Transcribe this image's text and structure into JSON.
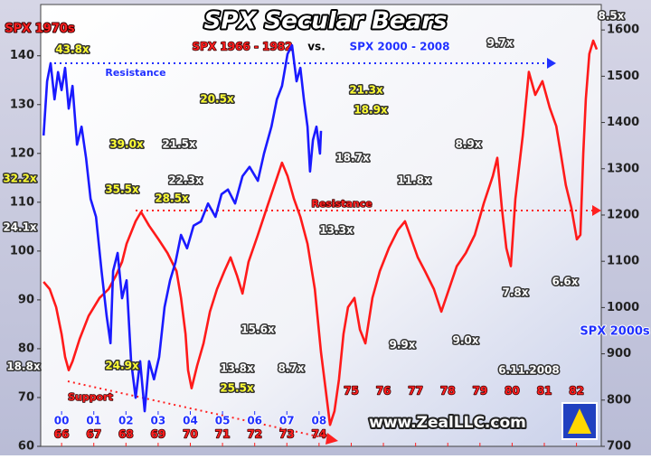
{
  "chart_data": {
    "type": "line",
    "title": "SPX Secular Bears",
    "y_label": "SPX 1970s",
    "y2_label": "SPX 2000s",
    "xlim": [
      -0.65,
      16.77
    ],
    "xticks": [
      {
        "value": 0,
        "label": "66"
      },
      {
        "value": 1,
        "label": "67"
      },
      {
        "value": 2,
        "label": "68"
      },
      {
        "value": 3,
        "label": "69"
      },
      {
        "value": 4,
        "label": "70"
      },
      {
        "value": 5,
        "label": "71"
      },
      {
        "value": 6,
        "label": "72"
      },
      {
        "value": 7,
        "label": "73"
      },
      {
        "value": 8,
        "label": "74"
      },
      {
        "value": 9,
        "label": "75"
      },
      {
        "value": 10,
        "label": "76"
      },
      {
        "value": 11,
        "label": "77"
      },
      {
        "value": 12,
        "label": "78"
      },
      {
        "value": 13,
        "label": "79"
      },
      {
        "value": 14,
        "label": "80"
      },
      {
        "value": 15,
        "label": "81"
      },
      {
        "value": 16,
        "label": "82"
      }
    ],
    "x2ticks": [
      {
        "value": 0,
        "label": "00"
      },
      {
        "value": 1,
        "label": "01"
      },
      {
        "value": 2,
        "label": "02"
      },
      {
        "value": 3,
        "label": "03"
      },
      {
        "value": 4,
        "label": "04"
      },
      {
        "value": 5,
        "label": "05"
      },
      {
        "value": 6,
        "label": "06"
      },
      {
        "value": 7,
        "label": "07"
      },
      {
        "value": 8,
        "label": "08"
      }
    ],
    "ylim": [
      60,
      150.5
    ],
    "yticks": [
      60,
      70,
      80,
      90,
      100,
      110,
      120,
      130,
      140
    ],
    "y2lim": [
      700,
      1655
    ],
    "y2ticks": [
      700,
      800,
      900,
      1000,
      1100,
      1200,
      1300,
      1400,
      1500,
      1600
    ],
    "series": [
      {
        "name": "SPX 1966 - 1982",
        "color": "#ff1a1a",
        "axis": "y",
        "x": [
          -0.56,
          -0.37,
          -0.17,
          0,
          0.11,
          0.22,
          0.34,
          0.56,
          0.84,
          1.18,
          1.46,
          1.69,
          1.88,
          2.02,
          2.3,
          2.47,
          2.72,
          3.01,
          3.29,
          3.57,
          3.71,
          3.85,
          3.93,
          4.04,
          4.21,
          4.41,
          4.61,
          4.83,
          5.06,
          5.25,
          5.45,
          5.62,
          5.81,
          6.1,
          6.38,
          6.66,
          6.85,
          7.02,
          7.22,
          7.42,
          7.64,
          7.87,
          8.06,
          8.2,
          8.34,
          8.48,
          8.62,
          8.76,
          8.9,
          9.1,
          9.27,
          9.44,
          9.66,
          9.89,
          10.17,
          10.45,
          10.67,
          10.87,
          11.07,
          11.29,
          11.57,
          11.8,
          11.99,
          12.28,
          12.56,
          12.84,
          13.12,
          13.4,
          13.54,
          13.68,
          13.82,
          13.96,
          14.1,
          14.33,
          14.52,
          14.72,
          14.94,
          15.17,
          15.37,
          15.51,
          15.67,
          15.84,
          16.01,
          16.12,
          16.21,
          16.29,
          16.4,
          16.52,
          16.63
        ],
        "values": [
          93.7,
          92.2,
          88.5,
          83.0,
          78.3,
          75.6,
          77.4,
          82.0,
          86.7,
          90.4,
          92.2,
          95.0,
          97.8,
          101.5,
          106.1,
          108.0,
          105.2,
          102.4,
          99.6,
          95.9,
          90.4,
          83.0,
          75.6,
          71.9,
          76.5,
          81.1,
          87.6,
          92.2,
          95.9,
          98.7,
          95.0,
          91.3,
          97.8,
          103.3,
          108.9,
          114.4,
          118.1,
          115.4,
          110.7,
          107.0,
          101.5,
          92.2,
          79.3,
          71.9,
          64.4,
          67.2,
          73.7,
          83.0,
          88.5,
          90.4,
          83.9,
          81.1,
          90.4,
          95.9,
          100.6,
          104.3,
          106.1,
          102.4,
          98.7,
          95.9,
          92.2,
          87.6,
          91.3,
          96.9,
          99.6,
          103.3,
          109.8,
          115.4,
          119.1,
          108.9,
          100.6,
          96.9,
          110.7,
          123.7,
          136.7,
          132.0,
          134.8,
          129.3,
          125.6,
          120.0,
          113.5,
          108.9,
          102.4,
          103.3,
          120.0,
          131.1,
          140.4,
          143.1,
          141.3
        ]
      },
      {
        "name": "SPX 2000 - 2008",
        "color": "#1a1aff",
        "axis": "y2",
        "x": [
          -0.56,
          -0.45,
          -0.34,
          -0.22,
          -0.11,
          0,
          0.11,
          0.22,
          0.34,
          0.48,
          0.62,
          0.76,
          0.9,
          1.07,
          1.24,
          1.4,
          1.52,
          1.6,
          1.74,
          1.88,
          2.02,
          2.16,
          2.3,
          2.44,
          2.58,
          2.72,
          2.87,
          3.03,
          3.2,
          3.37,
          3.54,
          3.71,
          3.9,
          4.1,
          4.33,
          4.55,
          4.78,
          4.97,
          5.17,
          5.39,
          5.62,
          5.84,
          6.1,
          6.29,
          6.52,
          6.69,
          6.85,
          7.02,
          7.16,
          7.3,
          7.42,
          7.53,
          7.64,
          7.72,
          7.81,
          7.92,
          8.03,
          8.06
        ],
        "values": [
          1372,
          1489,
          1528,
          1450,
          1509,
          1470,
          1518,
          1430,
          1479,
          1352,
          1391,
          1323,
          1235,
          1196,
          1079,
          981,
          923,
          1079,
          1118,
          1020,
          1059,
          884,
          805,
          884,
          776,
          884,
          845,
          893,
          1001,
          1059,
          1098,
          1157,
          1128,
          1177,
          1186,
          1225,
          1196,
          1245,
          1255,
          1225,
          1284,
          1304,
          1274,
          1333,
          1391,
          1450,
          1479,
          1548,
          1567,
          1489,
          1518,
          1450,
          1391,
          1294,
          1362,
          1391,
          1333,
          1382
        ]
      }
    ],
    "annotations": [
      "43.8x",
      "39.0x",
      "32.2x",
      "35.5x",
      "22.3x",
      "28.5x",
      "24.1x",
      "21.5x",
      "20.5x",
      "21.3x",
      "18.9x",
      "18.7x",
      "13.3x",
      "11.8x",
      "8.9x",
      "9.7x",
      "8.5x",
      "7.8x",
      "6.6x",
      "15.6x",
      "9.9x",
      "9.0x",
      "24.9x",
      "18.8x",
      "13.8x",
      "25.5x",
      "8.7x",
      "vs.",
      "Resistance",
      "Resistance",
      "Support",
      "6.11.2008",
      "www.ZealLLC.com"
    ]
  }
}
